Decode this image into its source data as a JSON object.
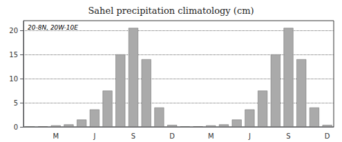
{
  "chart_data": {
    "type": "bar",
    "title": "Sahel precipitation climatology (cm)",
    "annotation": "20-8N, 20W-10E",
    "categories": [
      null,
      null,
      "M",
      null,
      null,
      "J",
      null,
      null,
      "S",
      null,
      null,
      "D",
      null,
      null,
      "M",
      null,
      null,
      "J",
      null,
      null,
      "S",
      null,
      null,
      "D"
    ],
    "values": [
      0.05,
      0.1,
      0.3,
      0.5,
      1.5,
      3.6,
      7.5,
      15.0,
      20.5,
      14.0,
      4.0,
      0.4,
      0.05,
      0.1,
      0.3,
      0.5,
      1.5,
      3.6,
      7.5,
      15.0,
      20.5,
      14.0,
      4.0,
      0.4
    ],
    "color": "#aaaaaa",
    "ylim": [
      0,
      22
    ],
    "yticks": [
      0,
      5,
      10,
      15,
      20
    ],
    "grid": true
  }
}
